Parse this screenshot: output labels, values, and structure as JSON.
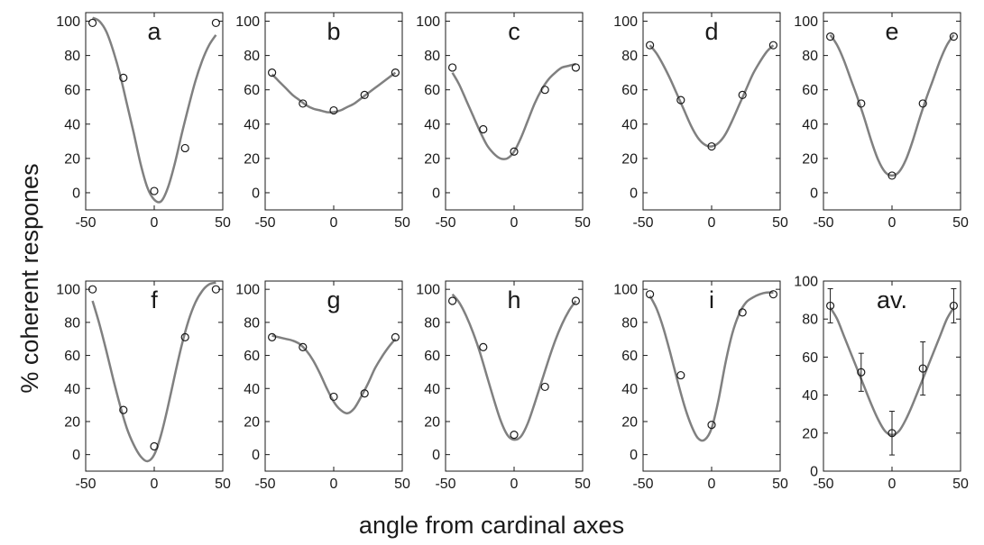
{
  "figure": {
    "xlabel": "angle from cardinal axes",
    "ylabel": "% coherent respones"
  },
  "chart_data": [
    {
      "type": "scatter",
      "panel": "a",
      "x": [
        -45,
        -22.5,
        0,
        22.5,
        45
      ],
      "y": [
        99,
        67,
        1,
        26,
        99
      ],
      "fit": [
        [
          -45,
          102
        ],
        [
          -40,
          100
        ],
        [
          -35,
          94
        ],
        [
          -30,
          83
        ],
        [
          -25,
          69
        ],
        [
          -20,
          52
        ],
        [
          -15,
          35
        ],
        [
          -10,
          17
        ],
        [
          -5,
          3
        ],
        [
          0,
          -4
        ],
        [
          5,
          -5
        ],
        [
          10,
          3
        ],
        [
          15,
          17
        ],
        [
          20,
          34
        ],
        [
          25,
          50
        ],
        [
          30,
          65
        ],
        [
          35,
          77
        ],
        [
          40,
          86
        ],
        [
          45,
          92
        ]
      ],
      "ylim": [
        -10,
        105
      ],
      "xlim": [
        -50,
        50
      ],
      "yticks": [
        0,
        20,
        40,
        60,
        80,
        100
      ],
      "xticks": [
        -50,
        0,
        50
      ]
    },
    {
      "type": "scatter",
      "panel": "b",
      "x": [
        -45,
        -22.5,
        0,
        22.5,
        45
      ],
      "y": [
        70,
        52,
        48,
        57,
        70
      ],
      "fit": [
        [
          -45,
          69
        ],
        [
          -40,
          65
        ],
        [
          -35,
          61
        ],
        [
          -30,
          57
        ],
        [
          -25,
          54
        ],
        [
          -20,
          51
        ],
        [
          -15,
          49
        ],
        [
          -10,
          48
        ],
        [
          -5,
          47
        ],
        [
          0,
          47
        ],
        [
          5,
          48
        ],
        [
          10,
          50
        ],
        [
          15,
          52
        ],
        [
          20,
          55
        ],
        [
          25,
          58
        ],
        [
          30,
          61
        ],
        [
          35,
          64
        ],
        [
          40,
          67
        ],
        [
          45,
          70
        ]
      ],
      "ylim": [
        -10,
        105
      ],
      "xlim": [
        -50,
        50
      ],
      "yticks": [
        0,
        20,
        40,
        60,
        80,
        100
      ],
      "xticks": [
        -50,
        0,
        50
      ]
    },
    {
      "type": "scatter",
      "panel": "c",
      "x": [
        -45,
        -22.5,
        0,
        22.5,
        45
      ],
      "y": [
        73,
        37,
        24,
        60,
        73
      ],
      "fit": [
        [
          -45,
          70
        ],
        [
          -40,
          63
        ],
        [
          -35,
          54
        ],
        [
          -30,
          45
        ],
        [
          -25,
          36
        ],
        [
          -20,
          28
        ],
        [
          -15,
          23
        ],
        [
          -10,
          20
        ],
        [
          -5,
          20
        ],
        [
          0,
          24
        ],
        [
          5,
          32
        ],
        [
          10,
          42
        ],
        [
          15,
          52
        ],
        [
          20,
          60
        ],
        [
          25,
          66
        ],
        [
          30,
          70
        ],
        [
          35,
          73
        ],
        [
          40,
          74
        ],
        [
          45,
          75
        ]
      ],
      "ylim": [
        -10,
        105
      ],
      "xlim": [
        -50,
        50
      ],
      "yticks": [
        0,
        20,
        40,
        60,
        80,
        100
      ],
      "xticks": [
        -50,
        0,
        50
      ]
    },
    {
      "type": "scatter",
      "panel": "d",
      "x": [
        -45,
        -22.5,
        0,
        22.5,
        45
      ],
      "y": [
        86,
        54,
        27,
        57,
        86
      ],
      "fit": [
        [
          -45,
          86
        ],
        [
          -40,
          81
        ],
        [
          -35,
          74
        ],
        [
          -30,
          66
        ],
        [
          -25,
          57
        ],
        [
          -20,
          48
        ],
        [
          -15,
          39
        ],
        [
          -10,
          32
        ],
        [
          -5,
          28
        ],
        [
          0,
          27
        ],
        [
          5,
          29
        ],
        [
          10,
          34
        ],
        [
          15,
          42
        ],
        [
          20,
          51
        ],
        [
          25,
          60
        ],
        [
          30,
          69
        ],
        [
          35,
          76
        ],
        [
          40,
          82
        ],
        [
          45,
          86
        ]
      ],
      "ylim": [
        -10,
        105
      ],
      "xlim": [
        -50,
        50
      ],
      "yticks": [
        0,
        20,
        40,
        60,
        80,
        100
      ],
      "xticks": [
        -50,
        0,
        50
      ]
    },
    {
      "type": "scatter",
      "panel": "e",
      "x": [
        -45,
        -22.5,
        0,
        22.5,
        45
      ],
      "y": [
        91,
        52,
        10,
        52,
        91
      ],
      "fit": [
        [
          -45,
          92
        ],
        [
          -40,
          86
        ],
        [
          -35,
          77
        ],
        [
          -30,
          66
        ],
        [
          -25,
          55
        ],
        [
          -20,
          43
        ],
        [
          -15,
          30
        ],
        [
          -10,
          19
        ],
        [
          -5,
          12
        ],
        [
          0,
          10
        ],
        [
          5,
          12
        ],
        [
          10,
          19
        ],
        [
          15,
          30
        ],
        [
          20,
          43
        ],
        [
          25,
          55
        ],
        [
          30,
          66
        ],
        [
          35,
          77
        ],
        [
          40,
          86
        ],
        [
          45,
          92
        ]
      ],
      "ylim": [
        -10,
        105
      ],
      "xlim": [
        -50,
        50
      ],
      "yticks": [
        0,
        20,
        40,
        60,
        80,
        100
      ],
      "xticks": [
        -50,
        0,
        50
      ]
    },
    {
      "type": "scatter",
      "panel": "f",
      "x": [
        -45,
        -22.5,
        0,
        22.5,
        45
      ],
      "y": [
        100,
        27,
        5,
        71,
        100
      ],
      "fit": [
        [
          -45,
          93
        ],
        [
          -40,
          79
        ],
        [
          -35,
          63
        ],
        [
          -30,
          46
        ],
        [
          -25,
          30
        ],
        [
          -20,
          16
        ],
        [
          -15,
          6
        ],
        [
          -10,
          -1
        ],
        [
          -5,
          -4
        ],
        [
          0,
          0
        ],
        [
          5,
          12
        ],
        [
          10,
          29
        ],
        [
          15,
          48
        ],
        [
          20,
          66
        ],
        [
          25,
          81
        ],
        [
          30,
          92
        ],
        [
          35,
          99
        ],
        [
          40,
          103
        ],
        [
          45,
          104
        ]
      ],
      "ylim": [
        -10,
        105
      ],
      "xlim": [
        -50,
        50
      ],
      "yticks": [
        0,
        20,
        40,
        60,
        80,
        100
      ],
      "xticks": [
        -50,
        0,
        50
      ]
    },
    {
      "type": "scatter",
      "panel": "g",
      "x": [
        -45,
        -22.5,
        0,
        22.5,
        45
      ],
      "y": [
        71,
        65,
        35,
        37,
        71
      ],
      "fit": [
        [
          -45,
          72
        ],
        [
          -40,
          71
        ],
        [
          -35,
          70
        ],
        [
          -30,
          69
        ],
        [
          -25,
          67
        ],
        [
          -20,
          63
        ],
        [
          -15,
          57
        ],
        [
          -10,
          49
        ],
        [
          -5,
          40
        ],
        [
          0,
          32
        ],
        [
          5,
          27
        ],
        [
          10,
          25
        ],
        [
          15,
          28
        ],
        [
          20,
          35
        ],
        [
          25,
          43
        ],
        [
          30,
          52
        ],
        [
          35,
          59
        ],
        [
          40,
          65
        ],
        [
          45,
          70
        ]
      ],
      "ylim": [
        -10,
        105
      ],
      "xlim": [
        -50,
        50
      ],
      "yticks": [
        0,
        20,
        40,
        60,
        80,
        100
      ],
      "xticks": [
        -50,
        0,
        50
      ]
    },
    {
      "type": "scatter",
      "panel": "h",
      "x": [
        -45,
        -22.5,
        0,
        22.5,
        45
      ],
      "y": [
        93,
        65,
        12,
        41,
        93
      ],
      "fit": [
        [
          -45,
          97
        ],
        [
          -40,
          92
        ],
        [
          -35,
          84
        ],
        [
          -30,
          74
        ],
        [
          -25,
          62
        ],
        [
          -20,
          48
        ],
        [
          -15,
          34
        ],
        [
          -10,
          21
        ],
        [
          -5,
          12
        ],
        [
          0,
          9
        ],
        [
          5,
          11
        ],
        [
          10,
          19
        ],
        [
          15,
          31
        ],
        [
          20,
          44
        ],
        [
          25,
          57
        ],
        [
          30,
          69
        ],
        [
          35,
          79
        ],
        [
          40,
          87
        ],
        [
          45,
          93
        ]
      ],
      "ylim": [
        -10,
        105
      ],
      "xlim": [
        -50,
        50
      ],
      "yticks": [
        0,
        20,
        40,
        60,
        80,
        100
      ],
      "xticks": [
        -50,
        0,
        50
      ]
    },
    {
      "type": "scatter",
      "panel": "i",
      "x": [
        -45,
        -22.5,
        0,
        22.5,
        45
      ],
      "y": [
        97,
        48,
        18,
        86,
        97
      ],
      "fit": [
        [
          -45,
          96
        ],
        [
          -40,
          88
        ],
        [
          -35,
          76
        ],
        [
          -30,
          61
        ],
        [
          -25,
          45
        ],
        [
          -20,
          30
        ],
        [
          -15,
          18
        ],
        [
          -10,
          10
        ],
        [
          -5,
          9
        ],
        [
          0,
          16
        ],
        [
          5,
          33
        ],
        [
          10,
          55
        ],
        [
          15,
          73
        ],
        [
          20,
          85
        ],
        [
          25,
          92
        ],
        [
          30,
          95
        ],
        [
          35,
          97
        ],
        [
          40,
          98
        ],
        [
          45,
          98
        ]
      ],
      "ylim": [
        -10,
        105
      ],
      "xlim": [
        -50,
        50
      ],
      "yticks": [
        0,
        20,
        40,
        60,
        80,
        100
      ],
      "xticks": [
        -50,
        0,
        50
      ]
    },
    {
      "type": "scatter",
      "panel": "av.",
      "x": [
        -45,
        -22.5,
        0,
        22.5,
        45
      ],
      "y": [
        87,
        52,
        20,
        54,
        87
      ],
      "err": [
        9,
        10,
        11.5,
        14,
        9
      ],
      "fit": [
        [
          -45,
          86
        ],
        [
          -40,
          80
        ],
        [
          -35,
          71
        ],
        [
          -30,
          62
        ],
        [
          -25,
          53
        ],
        [
          -20,
          44
        ],
        [
          -15,
          35
        ],
        [
          -10,
          27
        ],
        [
          -5,
          21
        ],
        [
          0,
          19
        ],
        [
          5,
          21
        ],
        [
          10,
          27
        ],
        [
          15,
          35
        ],
        [
          20,
          44
        ],
        [
          25,
          53
        ],
        [
          30,
          62
        ],
        [
          35,
          71
        ],
        [
          40,
          80
        ],
        [
          45,
          86
        ]
      ],
      "ylim": [
        0,
        100
      ],
      "xlim": [
        -50,
        50
      ],
      "yticks": [
        0,
        20,
        40,
        60,
        80,
        100
      ],
      "xticks": [
        -50,
        0,
        50
      ]
    }
  ]
}
